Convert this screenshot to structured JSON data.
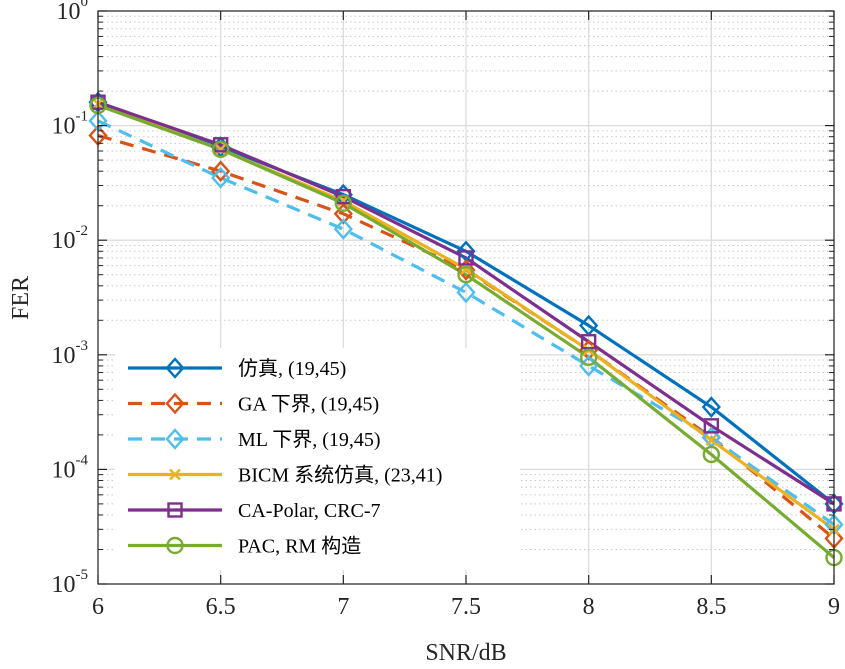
{
  "chart_data": {
    "type": "line",
    "xlabel": "SNR/dB",
    "ylabel": "FER",
    "xlim": [
      6,
      9
    ],
    "ylim": [
      1e-05,
      1
    ],
    "yscale": "log",
    "grid": true,
    "legend_position": "bottom-left",
    "x_ticks": [
      {
        "value": 6,
        "label": "6"
      },
      {
        "value": 6.5,
        "label": "6.5"
      },
      {
        "value": 7,
        "label": "7"
      },
      {
        "value": 7.5,
        "label": "7.5"
      },
      {
        "value": 8,
        "label": "8"
      },
      {
        "value": 8.5,
        "label": "8.5"
      },
      {
        "value": 9,
        "label": "9"
      }
    ],
    "y_ticks": [
      {
        "value": 1,
        "base": "10",
        "exp": "0"
      },
      {
        "value": 0.1,
        "base": "10",
        "exp": "-1"
      },
      {
        "value": 0.01,
        "base": "10",
        "exp": "-2"
      },
      {
        "value": 0.001,
        "base": "10",
        "exp": "-3"
      },
      {
        "value": 0.0001,
        "base": "10",
        "exp": "-4"
      },
      {
        "value": 1e-05,
        "base": "10",
        "exp": "-5"
      }
    ],
    "x": [
      6,
      6.5,
      7,
      7.5,
      8,
      8.5,
      9
    ],
    "series": [
      {
        "name": "仿真, (19,45)",
        "color": "#0072BD",
        "dash": "solid",
        "marker": "diamond",
        "values": [
          0.16,
          0.065,
          0.025,
          0.008,
          0.0018,
          0.00035,
          5e-05
        ]
      },
      {
        "name": "GA 下界, (19,45)",
        "color": "#D95319",
        "dash": "dashed",
        "marker": "diamond",
        "values": [
          0.082,
          0.04,
          0.017,
          0.0055,
          0.0011,
          0.00019,
          2.5e-05
        ]
      },
      {
        "name": "ML 下界, (19,45)",
        "color": "#4DBEEE",
        "dash": "dashed",
        "marker": "diamond",
        "values": [
          0.11,
          0.035,
          0.0125,
          0.0035,
          0.0008,
          0.00019,
          3.3e-05
        ]
      },
      {
        "name": "BICM 系统仿真, (23,41)",
        "color": "#EDB120",
        "dash": "solid",
        "marker": "x",
        "values": [
          0.155,
          0.062,
          0.022,
          0.0056,
          0.0011,
          0.00018,
          3e-05
        ]
      },
      {
        "name": "CA-Polar, CRC-7",
        "color": "#7E2F8E",
        "dash": "solid",
        "marker": "square",
        "values": [
          0.16,
          0.068,
          0.024,
          0.007,
          0.0013,
          0.00024,
          5e-05
        ]
      },
      {
        "name": "PAC, RM  构造",
        "color": "#77AC30",
        "dash": "solid",
        "marker": "circle",
        "values": [
          0.15,
          0.062,
          0.021,
          0.005,
          0.00095,
          0.000135,
          1.7e-05
        ]
      }
    ]
  }
}
